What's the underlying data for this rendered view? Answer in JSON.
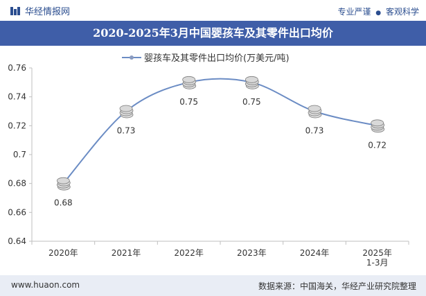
{
  "header": {
    "brand": "华经情报网",
    "slogan_left": "专业严谨",
    "slogan_bullet": "●",
    "slogan_right": "客观科学"
  },
  "title": "2020-2025年3月中国婴孩车及其零件出口均价",
  "chart_data": {
    "type": "line",
    "title": "2020-2025年3月中国婴孩车及其零件出口均价",
    "legend": "婴孩车及其零件出口均价(万美元/吨)",
    "legend_position": "top-center",
    "categories": [
      "2020年",
      "2021年",
      "2022年",
      "2023年",
      "2024年",
      "2025年\n1-3月"
    ],
    "values": [
      0.68,
      0.73,
      0.75,
      0.75,
      0.73,
      0.72
    ],
    "data_labels": [
      "0.68",
      "0.73",
      "0.75",
      "0.75",
      "0.73",
      "0.72"
    ],
    "ylim": [
      0.64,
      0.76
    ],
    "yticks": [
      0.64,
      0.66,
      0.68,
      0.7,
      0.72,
      0.74,
      0.76
    ],
    "ytick_labels": [
      "0.64",
      "0.66",
      "0.68",
      "0.7",
      "0.72",
      "0.74",
      "0.76"
    ],
    "xlabel": "",
    "ylabel": "",
    "line_color": "#6b8cc4",
    "marker_color": "#a9a9a9"
  },
  "footer": {
    "website": "www.huaon.com",
    "source": "数据来源：中国海关，华经产业研究院整理"
  }
}
